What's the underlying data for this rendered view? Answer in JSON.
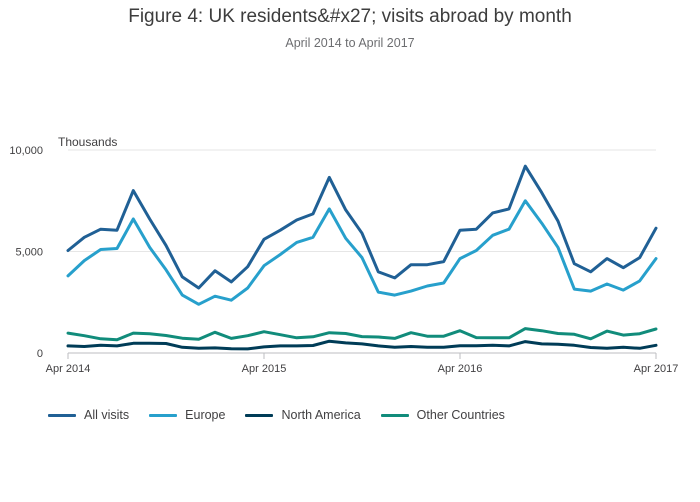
{
  "chart_data": {
    "type": "line",
    "title": "Figure 4: UK residents&#x27; visits abroad by month",
    "subtitle": "April 2014 to April 2017",
    "ylabel": "Thousands",
    "xlabel": "",
    "ylim": [
      0,
      10000
    ],
    "yticks": [
      0,
      5000,
      10000
    ],
    "ytick_labels": [
      "0",
      "5,000",
      "10,000"
    ],
    "xtick_indices": [
      0,
      12,
      24,
      36
    ],
    "xtick_labels": [
      "Apr 2014",
      "Apr 2015",
      "Apr 2016",
      "Apr 2017"
    ],
    "categories": [
      "Apr 2014",
      "May 2014",
      "Jun 2014",
      "Jul 2014",
      "Aug 2014",
      "Sep 2014",
      "Oct 2014",
      "Nov 2014",
      "Dec 2014",
      "Jan 2015",
      "Feb 2015",
      "Mar 2015",
      "Apr 2015",
      "May 2015",
      "Jun 2015",
      "Jul 2015",
      "Aug 2015",
      "Sep 2015",
      "Oct 2015",
      "Nov 2015",
      "Dec 2015",
      "Jan 2016",
      "Feb 2016",
      "Mar 2016",
      "Apr 2016",
      "May 2016",
      "Jun 2016",
      "Jul 2016",
      "Aug 2016",
      "Sep 2016",
      "Oct 2016",
      "Nov 2016",
      "Dec 2016",
      "Jan 2017",
      "Feb 2017",
      "Mar 2017",
      "Apr 2017"
    ],
    "series": [
      {
        "name": "All visits",
        "color": "#206095",
        "values": [
          5050,
          5700,
          6100,
          6050,
          8000,
          6600,
          5300,
          3750,
          3200,
          4050,
          3500,
          4250,
          5600,
          6050,
          6550,
          6850,
          8650,
          7050,
          5900,
          4000,
          3700,
          4350,
          4350,
          4500,
          6050,
          6100,
          6900,
          7100,
          9200,
          7900,
          6500,
          4400,
          4000,
          4650,
          4200,
          4700,
          6150
        ]
      },
      {
        "name": "Europe",
        "color": "#27a0cc",
        "values": [
          3800,
          4550,
          5100,
          5150,
          6600,
          5200,
          4100,
          2850,
          2400,
          2800,
          2600,
          3200,
          4300,
          4850,
          5450,
          5700,
          7100,
          5650,
          4700,
          3000,
          2850,
          3050,
          3300,
          3450,
          4650,
          5050,
          5800,
          6100,
          7500,
          6400,
          5200,
          3150,
          3050,
          3400,
          3100,
          3550,
          4650
        ]
      },
      {
        "name": "North America",
        "color": "#003c57",
        "values": [
          350,
          320,
          380,
          350,
          480,
          480,
          470,
          280,
          230,
          250,
          210,
          200,
          300,
          350,
          350,
          370,
          580,
          500,
          450,
          350,
          280,
          320,
          280,
          280,
          360,
          360,
          380,
          350,
          560,
          450,
          430,
          380,
          270,
          230,
          280,
          230,
          380
        ]
      },
      {
        "name": "Other Countries",
        "color": "#118c7b",
        "values": [
          980,
          850,
          700,
          650,
          980,
          950,
          860,
          730,
          680,
          1020,
          720,
          850,
          1050,
          900,
          750,
          800,
          1000,
          960,
          810,
          790,
          720,
          1000,
          830,
          830,
          1100,
          760,
          750,
          750,
          1200,
          1100,
          960,
          920,
          700,
          1080,
          880,
          950,
          1180
        ]
      }
    ]
  }
}
